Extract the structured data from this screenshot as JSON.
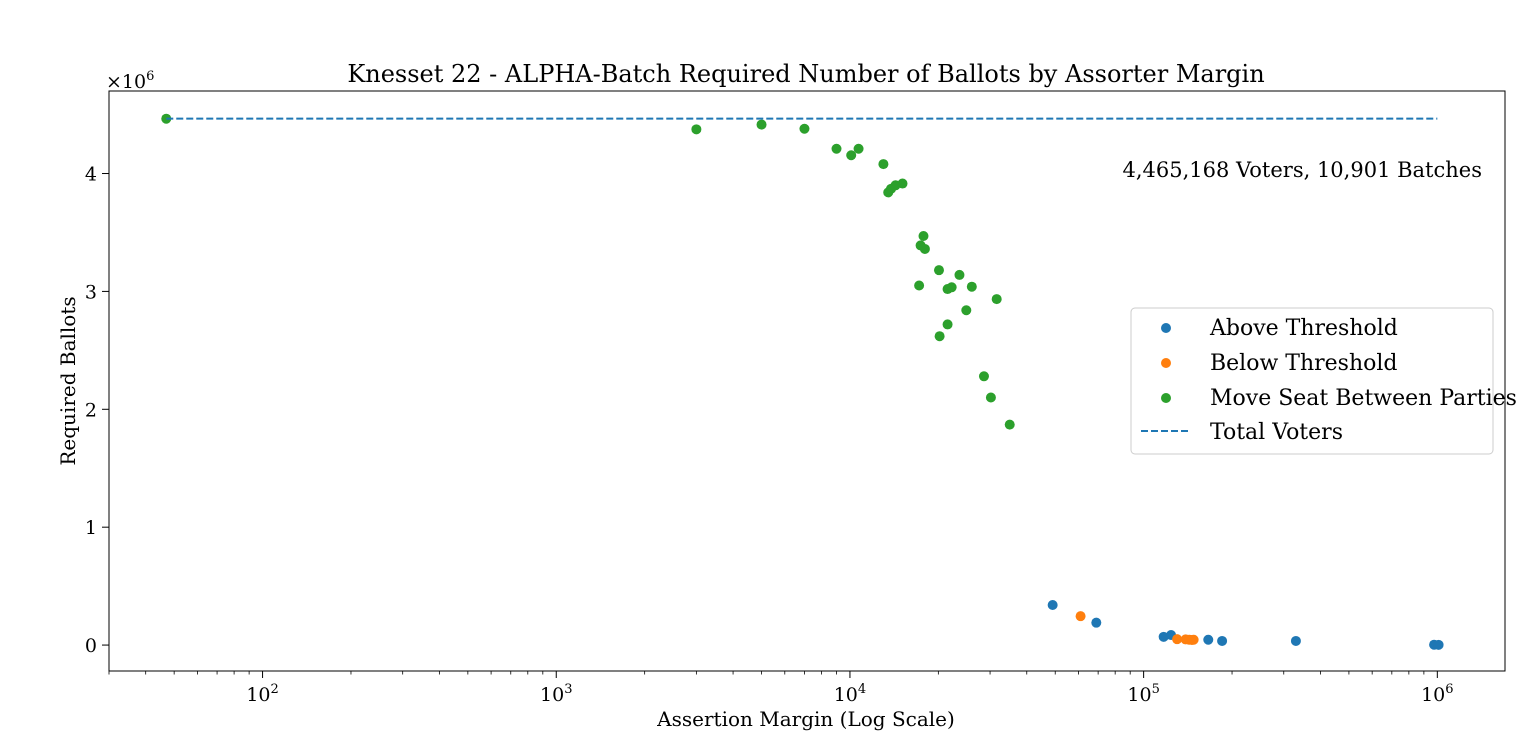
{
  "chart_data": {
    "type": "scatter",
    "title": "Knesset 22 - ALPHA-Batch Required Number of Ballots by Assorter Margin",
    "xlabel": "Assertion Margin (Log Scale)",
    "ylabel": "Required Ballots",
    "x_scale": "log",
    "xlim": [
      30,
      1700000
    ],
    "ylim": [
      -220000,
      4700000
    ],
    "x_ticks": [
      100,
      1000,
      10000,
      100000,
      1000000
    ],
    "x_tick_labels": [
      {
        "base": "10",
        "exp": "2"
      },
      {
        "base": "10",
        "exp": "3"
      },
      {
        "base": "10",
        "exp": "4"
      },
      {
        "base": "10",
        "exp": "5"
      },
      {
        "base": "10",
        "exp": "6"
      }
    ],
    "y_ticks": [
      0,
      1000000,
      2000000,
      3000000,
      4000000
    ],
    "y_tick_labels": [
      "0",
      "1",
      "2",
      "3",
      "4"
    ],
    "y_multiplier": {
      "base": "×10",
      "exp": "6"
    },
    "grid": false,
    "legend_position": "right",
    "annotation": "4,465,168 Voters, 10,901 Batches",
    "series": [
      {
        "name": "Above Threshold",
        "color": "#1f77b4",
        "marker": "circle",
        "points": [
          [
            49000,
            340000
          ],
          [
            69000,
            190000
          ],
          [
            117000,
            70000
          ],
          [
            124000,
            85000
          ],
          [
            166000,
            45000
          ],
          [
            185000,
            35000
          ],
          [
            330000,
            35000
          ],
          [
            975000,
            3000
          ],
          [
            1010000,
            2000
          ]
        ]
      },
      {
        "name": "Below Threshold",
        "color": "#ff7f0e",
        "marker": "circle",
        "points": [
          [
            61000,
            245000
          ],
          [
            130000,
            50000
          ],
          [
            139000,
            48000
          ],
          [
            143000,
            45000
          ],
          [
            146000,
            43000
          ],
          [
            148000,
            45000
          ]
        ]
      },
      {
        "name": "Move Seat Between Parties",
        "color": "#2ca02c",
        "marker": "circle",
        "points": [
          [
            47,
            4465000
          ],
          [
            3000,
            4375000
          ],
          [
            5000,
            4415000
          ],
          [
            7000,
            4380000
          ],
          [
            9000,
            4210000
          ],
          [
            10100,
            4155000
          ],
          [
            10700,
            4210000
          ],
          [
            13000,
            4080000
          ],
          [
            13500,
            3840000
          ],
          [
            13800,
            3870000
          ],
          [
            14300,
            3900000
          ],
          [
            15100,
            3915000
          ],
          [
            17200,
            3050000
          ],
          [
            17400,
            3390000
          ],
          [
            17800,
            3470000
          ],
          [
            18000,
            3360000
          ],
          [
            20100,
            3180000
          ],
          [
            20200,
            2620000
          ],
          [
            21500,
            2720000
          ],
          [
            21500,
            3020000
          ],
          [
            22200,
            3035000
          ],
          [
            23600,
            3140000
          ],
          [
            24900,
            2840000
          ],
          [
            26000,
            3040000
          ],
          [
            28600,
            2280000
          ],
          [
            30200,
            2100000
          ],
          [
            31600,
            2935000
          ],
          [
            35000,
            1870000
          ]
        ]
      },
      {
        "name": "Total Voters",
        "color": "#1f77b4",
        "line_style": "dashed",
        "value": 4465168
      }
    ]
  }
}
